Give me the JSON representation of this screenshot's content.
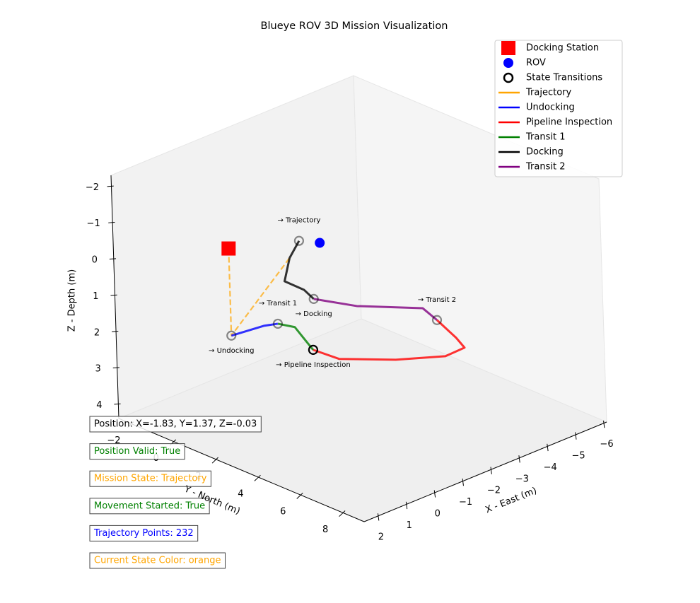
{
  "chart_data": {
    "type": "line3d",
    "title": "Blueye ROV 3D Mission Visualization",
    "xlabel": "X - East (m)",
    "ylabel": "Y - North (m)",
    "zlabel": "Z - Depth (m)",
    "xlim": [
      -6.1,
      2.5
    ],
    "ylim": [
      -2.6,
      9.0
    ],
    "zlim": [
      -2.3,
      4.4
    ],
    "zinvert": true,
    "grid": false,
    "legend": "upper right",
    "xticks": [
      {
        "value": -6,
        "label": "−6"
      },
      {
        "value": -5,
        "label": "−5"
      },
      {
        "value": -4,
        "label": "−4"
      },
      {
        "value": -3,
        "label": "−3"
      },
      {
        "value": -2,
        "label": "−2"
      },
      {
        "value": -1,
        "label": "−1"
      },
      0,
      1,
      2
    ],
    "yticks": [
      {
        "value": -2,
        "label": "−2"
      },
      0,
      2,
      4,
      6,
      8
    ],
    "zticks": [
      {
        "value": -2,
        "label": "−2"
      },
      {
        "value": -1,
        "label": "−1"
      },
      0,
      1,
      2,
      3,
      4
    ],
    "docking_station": {
      "name": "Docking Station",
      "color": "#ff0000",
      "x": 0,
      "y": -0.5,
      "z": 0
    },
    "rov": {
      "name": "ROV",
      "color": "#0000ff",
      "x": -1.83,
      "y": 1.37,
      "z": -0.03
    },
    "transitions": {
      "name": "State Transitions",
      "color": "#000000",
      "x": [
        0,
        -1.34,
        -0.86,
        -4.35,
        -3.04,
        -1.59
      ],
      "y": [
        -0.5,
        -0.09,
        2.22,
        3.42,
        -0.66,
        0.71
      ],
      "z": [
        2.4,
        2.4,
        2.4,
        2.4,
        2.4,
        0
      ],
      "labels": [
        "→ Undocking",
        "→ Transit 1",
        "→ Pipeline Inspection",
        "→ Transit 2",
        "→ Docking",
        "→ Trajectory"
      ]
    },
    "series": [
      {
        "name": "Trajectory",
        "color": "#ffa500",
        "dashed": true,
        "x": [
          0,
          0,
          -2.22
        ],
        "y": [
          -0.5,
          -0.5,
          -0.63
        ],
        "z": [
          0,
          2.4,
          1.0
        ]
      },
      {
        "name": "Undocking",
        "color": "#0000ff",
        "x": [
          0,
          -1.0,
          -1.34
        ],
        "y": [
          -0.5,
          -0.3,
          -0.09
        ],
        "z": [
          2.4,
          2.4,
          2.4
        ]
      },
      {
        "name": "Pipeline Inspection",
        "color": "#ff0000",
        "x": [
          -0.86,
          -0.94,
          -1.92,
          -2.96,
          -3.67,
          -3.94,
          -4.35
        ],
        "y": [
          2.22,
          3.35,
          4.71,
          5.67,
          5.63,
          4.87,
          3.42
        ],
        "z": [
          2.4,
          2.4,
          2.4,
          2.4,
          2.4,
          2.4,
          2.4
        ]
      },
      {
        "name": "Transit 1",
        "color": "#008000",
        "x": [
          -1.34,
          -1.5,
          -1.2,
          -0.86
        ],
        "y": [
          -0.09,
          0.5,
          1.3,
          2.22
        ],
        "z": [
          2.4,
          2.4,
          2.4,
          2.4
        ]
      },
      {
        "name": "Docking",
        "color": "#000000",
        "x": [
          -3.04,
          -2.95,
          -2.66,
          -2.22,
          -1.59
        ],
        "y": [
          -0.66,
          -0.99,
          -1.51,
          -0.63,
          0.71
        ],
        "z": [
          2.4,
          2.2,
          2.0,
          1.0,
          0
        ]
      },
      {
        "name": "Transit 2",
        "color": "#800080",
        "x": [
          -4.35,
          -4.6,
          -3.51,
          -3.04
        ],
        "y": [
          3.42,
          2.41,
          0.75,
          -0.66
        ],
        "z": [
          2.4,
          2.4,
          2.4,
          2.4
        ]
      }
    ],
    "info": [
      {
        "text": "Position: X=-1.83, Y=1.37, Z=-0.03",
        "color": "#000000"
      },
      {
        "text": "Position Valid: True",
        "color": "#008000"
      },
      {
        "text": "Mission State: Trajectory",
        "color": "#ffa500"
      },
      {
        "text": "Movement Started: True",
        "color": "#008000"
      },
      {
        "text": "Trajectory Points: 232",
        "color": "#0000ff"
      },
      {
        "text": "Current State Color: orange",
        "color": "#ffa500"
      }
    ]
  }
}
